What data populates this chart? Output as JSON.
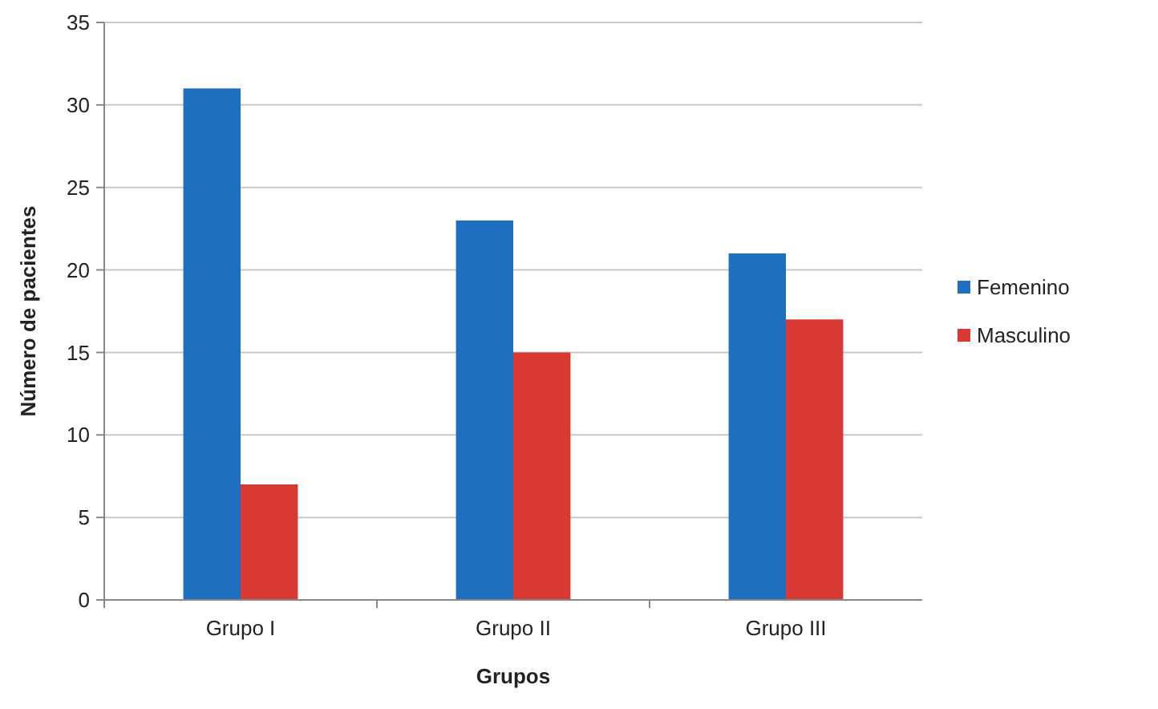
{
  "chart_data": {
    "type": "bar",
    "xlabel": "Grupos",
    "ylabel": "Número de pacientes",
    "categories": [
      "Grupo I",
      "Grupo II",
      "Grupo III"
    ],
    "series": [
      {
        "name": "Femenino",
        "color": "#1f6fc0",
        "values": [
          31,
          23,
          21
        ]
      },
      {
        "name": "Masculino",
        "color": "#d83a33",
        "values": [
          7,
          15,
          17
        ]
      }
    ],
    "ylim": [
      0,
      35
    ],
    "yticks": [
      0,
      5,
      10,
      15,
      20,
      25,
      30,
      35
    ],
    "grid": "y",
    "legend": "right"
  }
}
